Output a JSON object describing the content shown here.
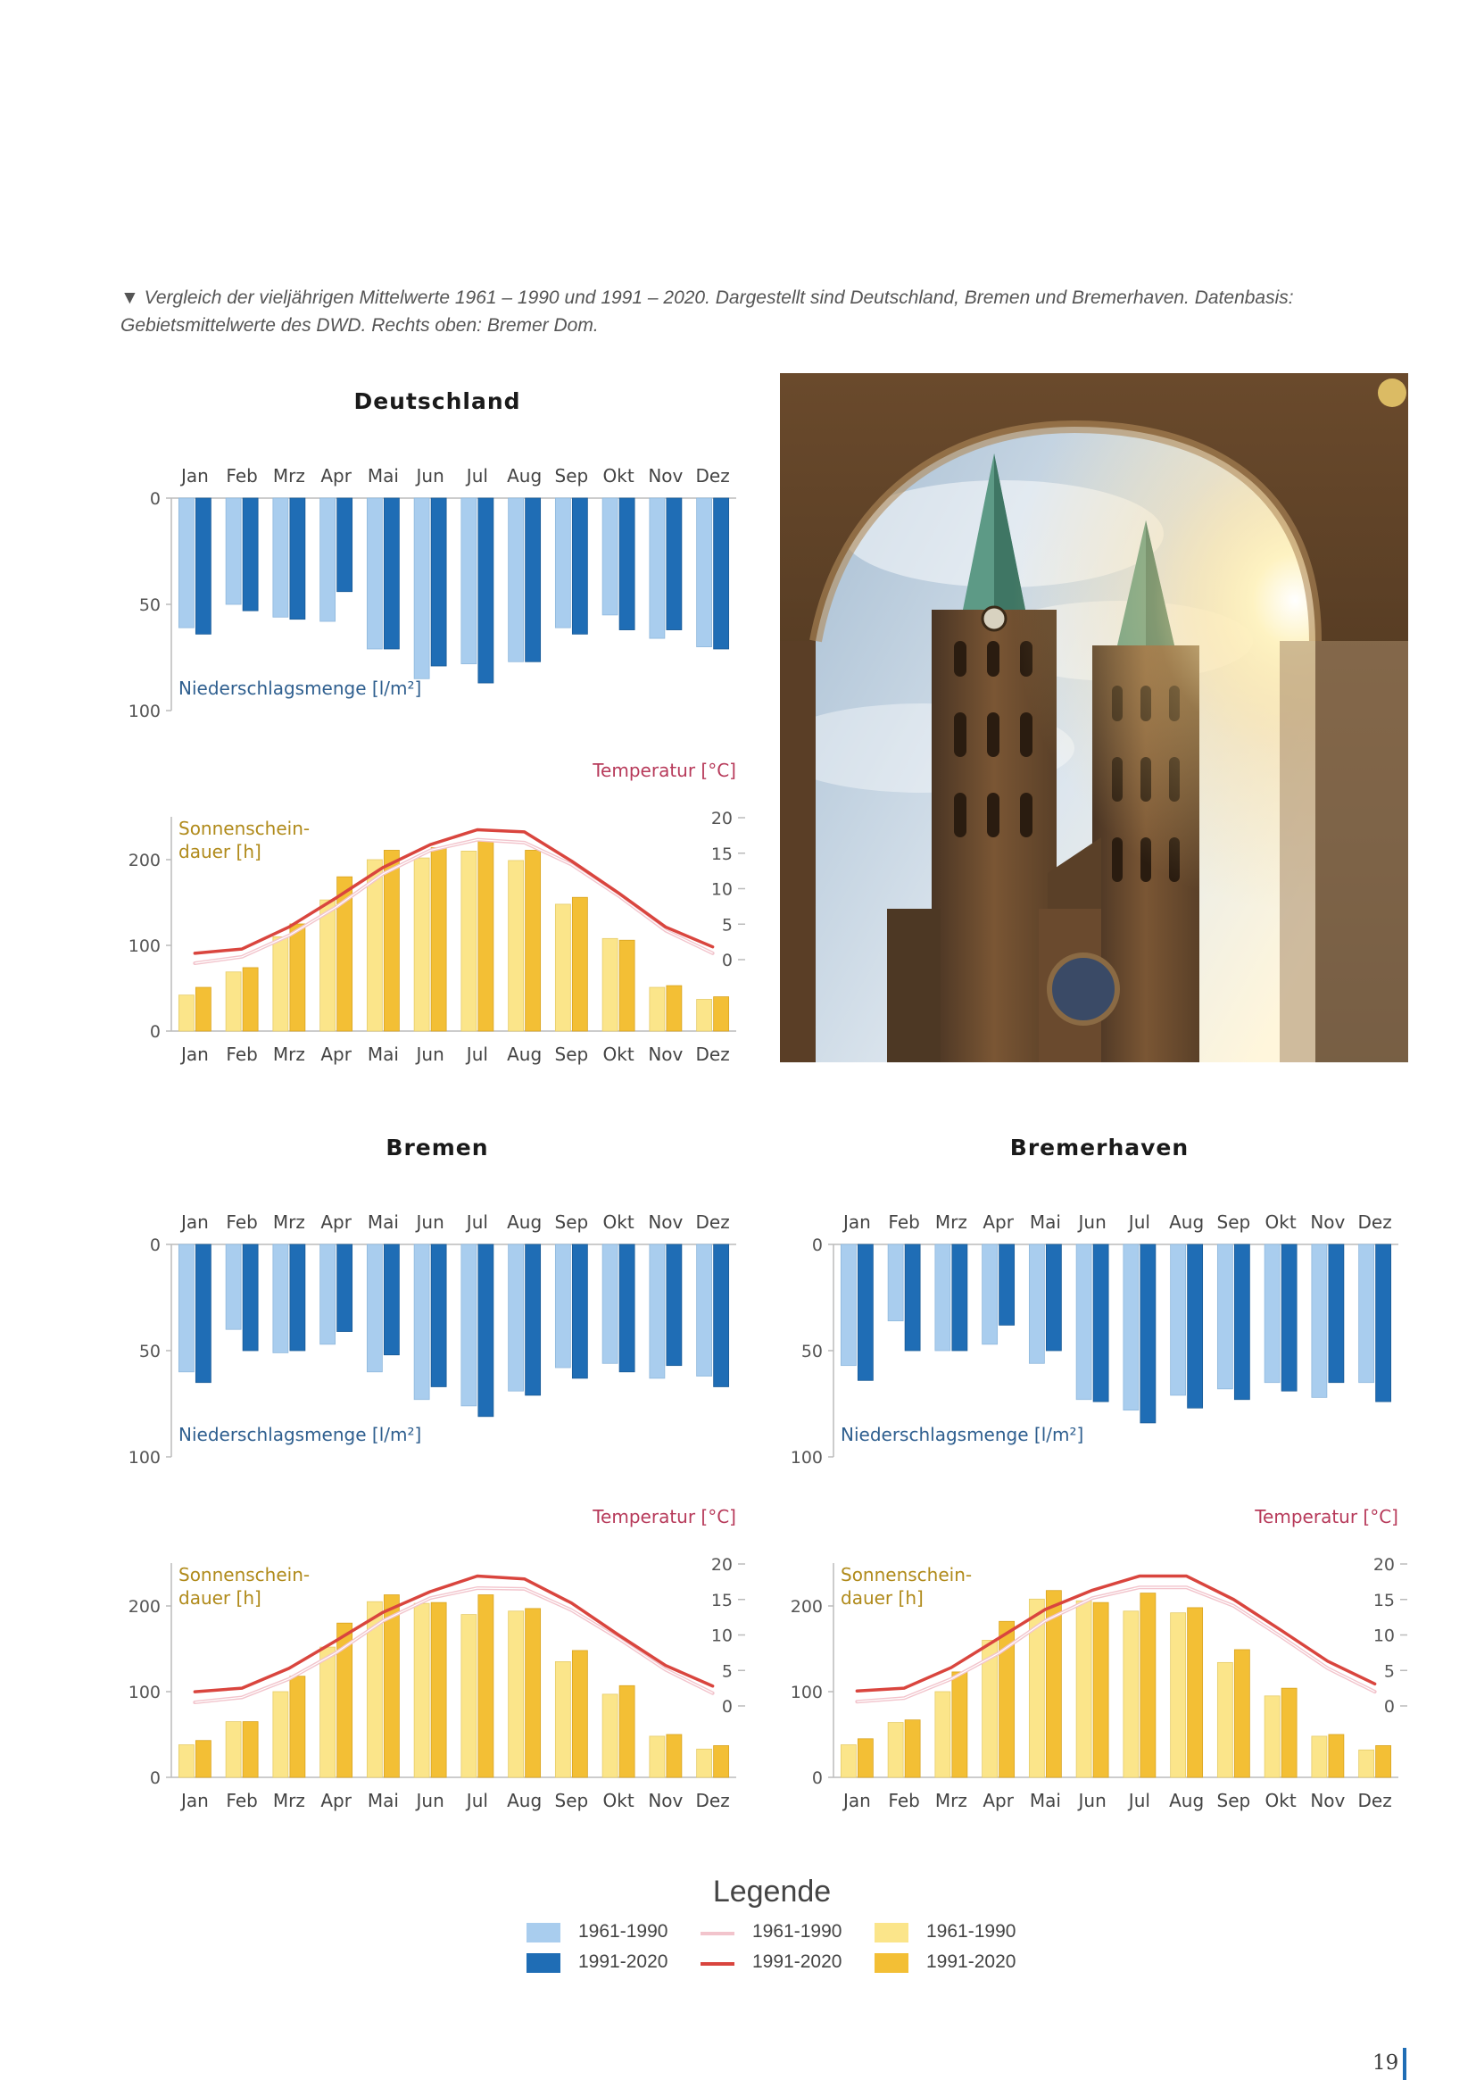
{
  "caption": "▼ Vergleich der vieljährigen Mittelwerte 1961 – 1990 und 1991 – 2020. Dargestellt sind Deutschland, Bremen und Bremerhaven. Datenbasis: Gebietsmittelwerte des DWD. Rechts oben: Bremer Dom.",
  "labels": {
    "precip": "Niederschlagsmenge [l/m²]",
    "temp": "Temperatur [°C]",
    "sun_line1": "Sonnenschein-",
    "sun_line2": "dauer [h]"
  },
  "months": [
    "Jan",
    "Feb",
    "Mrz",
    "Apr",
    "Mai",
    "Jun",
    "Jul",
    "Aug",
    "Sep",
    "Okt",
    "Nov",
    "Dez"
  ],
  "axes": {
    "precip_ticks": [
      0,
      50,
      100
    ],
    "temp_ticks": [
      0,
      5,
      10,
      15,
      20
    ],
    "sun_ticks": [
      0,
      100,
      200
    ]
  },
  "colors": {
    "precip_old": "#a9cdee",
    "precip_new": "#1f6db5",
    "temp_old": "#f2c4cc",
    "temp_new": "#d9453e",
    "sun_old": "#fbe58a",
    "sun_new": "#f3bf35"
  },
  "chart_data": [
    {
      "type": "bar",
      "title": "Deutschland",
      "categories": [
        "Jan",
        "Feb",
        "Mrz",
        "Apr",
        "Mai",
        "Jun",
        "Jul",
        "Aug",
        "Sep",
        "Okt",
        "Nov",
        "Dez"
      ],
      "precipitation": {
        "ylim": [
          0,
          100
        ],
        "series": [
          {
            "name": "1961-1990",
            "values": [
              61,
              50,
              56,
              58,
              71,
              85,
              78,
              77,
              61,
              55,
              66,
              70
            ]
          },
          {
            "name": "1991-2020",
            "values": [
              64,
              53,
              57,
              44,
              71,
              79,
              87,
              77,
              64,
              62,
              62,
              71
            ]
          }
        ]
      },
      "temperature": {
        "ylim": [
          0,
          20
        ],
        "series": [
          {
            "name": "1961-1990",
            "values": [
              -0.5,
              0.4,
              3.4,
              7.4,
              12.1,
              15.4,
              16.9,
              16.5,
              13.4,
              9.0,
              4.1,
              0.9
            ]
          },
          {
            "name": "1991-2020",
            "values": [
              0.9,
              1.5,
              4.6,
              8.7,
              13.0,
              16.2,
              18.3,
              18.0,
              13.9,
              9.4,
              4.6,
              1.8
            ]
          }
        ]
      },
      "sunshine": {
        "ylim": [
          0,
          250
        ],
        "series": [
          {
            "name": "1961-1990",
            "values": [
              42,
              69,
              110,
              153,
              200,
              202,
              210,
              199,
              148,
              108,
              51,
              37
            ]
          },
          {
            "name": "1991-2020",
            "values": [
              51,
              74,
              125,
              180,
              211,
              214,
              223,
              211,
              156,
              106,
              53,
              40
            ]
          }
        ]
      }
    },
    {
      "type": "bar",
      "title": "Bremen",
      "categories": [
        "Jan",
        "Feb",
        "Mrz",
        "Apr",
        "Mai",
        "Jun",
        "Jul",
        "Aug",
        "Sep",
        "Okt",
        "Nov",
        "Dez"
      ],
      "precipitation": {
        "ylim": [
          0,
          100
        ],
        "series": [
          {
            "name": "1961-1990",
            "values": [
              60,
              40,
              51,
              47,
              60,
              73,
              76,
              69,
              58,
              56,
              63,
              62
            ]
          },
          {
            "name": "1991-2020",
            "values": [
              65,
              50,
              50,
              41,
              52,
              67,
              81,
              71,
              63,
              60,
              57,
              67
            ]
          }
        ]
      },
      "temperature": {
        "ylim": [
          0,
          20
        ],
        "series": [
          {
            "name": "1961-1990",
            "values": [
              0.5,
              1.2,
              3.8,
              7.5,
              12.0,
              15.2,
              16.6,
              16.5,
              13.5,
              9.5,
              5.1,
              1.8
            ]
          },
          {
            "name": "1991-2020",
            "values": [
              2.0,
              2.5,
              5.3,
              9.2,
              13.2,
              16.1,
              18.3,
              17.9,
              14.5,
              10.0,
              5.7,
              2.8
            ]
          }
        ]
      },
      "sunshine": {
        "ylim": [
          0,
          250
        ],
        "series": [
          {
            "name": "1961-1990",
            "values": [
              38,
              65,
              100,
              152,
              205,
              203,
              190,
              194,
              135,
              97,
              48,
              33
            ]
          },
          {
            "name": "1991-2020",
            "values": [
              43,
              65,
              118,
              180,
              213,
              204,
              213,
              197,
              148,
              107,
              50,
              37
            ]
          }
        ]
      }
    },
    {
      "type": "bar",
      "title": "Bremerhaven",
      "categories": [
        "Jan",
        "Feb",
        "Mrz",
        "Apr",
        "Mai",
        "Jun",
        "Jul",
        "Aug",
        "Sep",
        "Okt",
        "Nov",
        "Dez"
      ],
      "precipitation": {
        "ylim": [
          0,
          100
        ],
        "series": [
          {
            "name": "1961-1990",
            "values": [
              57,
              36,
              50,
              47,
              56,
              73,
              78,
              71,
              68,
              65,
              72,
              65
            ]
          },
          {
            "name": "1991-2020",
            "values": [
              64,
              50,
              50,
              38,
              50,
              74,
              84,
              77,
              73,
              69,
              65,
              74
            ]
          }
        ]
      },
      "temperature": {
        "ylim": [
          0,
          20
        ],
        "series": [
          {
            "name": "1961-1990",
            "values": [
              0.6,
              1.1,
              3.8,
              7.4,
              12.0,
              15.2,
              16.7,
              16.7,
              14.1,
              9.8,
              5.3,
              2.0
            ]
          },
          {
            "name": "1991-2020",
            "values": [
              2.1,
              2.5,
              5.4,
              9.5,
              13.6,
              16.3,
              18.3,
              18.3,
              15.0,
              10.7,
              6.3,
              3.1
            ]
          }
        ]
      },
      "sunshine": {
        "ylim": [
          0,
          250
        ],
        "series": [
          {
            "name": "1961-1990",
            "values": [
              38,
              64,
              100,
              160,
              208,
              206,
              194,
              192,
              134,
              95,
              48,
              32
            ]
          },
          {
            "name": "1991-2020",
            "values": [
              45,
              67,
              123,
              182,
              218,
              204,
              215,
              198,
              149,
              104,
              50,
              37
            ]
          }
        ]
      }
    }
  ],
  "legend": {
    "title": "Legende",
    "items": [
      {
        "key": "precip_old",
        "label": "1961-1990"
      },
      {
        "key": "precip_new",
        "label": "1991-2020"
      },
      {
        "key": "temp_old",
        "label": "1961-1990"
      },
      {
        "key": "temp_new",
        "label": "1991-2020"
      },
      {
        "key": "sun_old",
        "label": "1961-1990"
      },
      {
        "key": "sun_new",
        "label": "1991-2020"
      }
    ]
  },
  "page_number": "19"
}
